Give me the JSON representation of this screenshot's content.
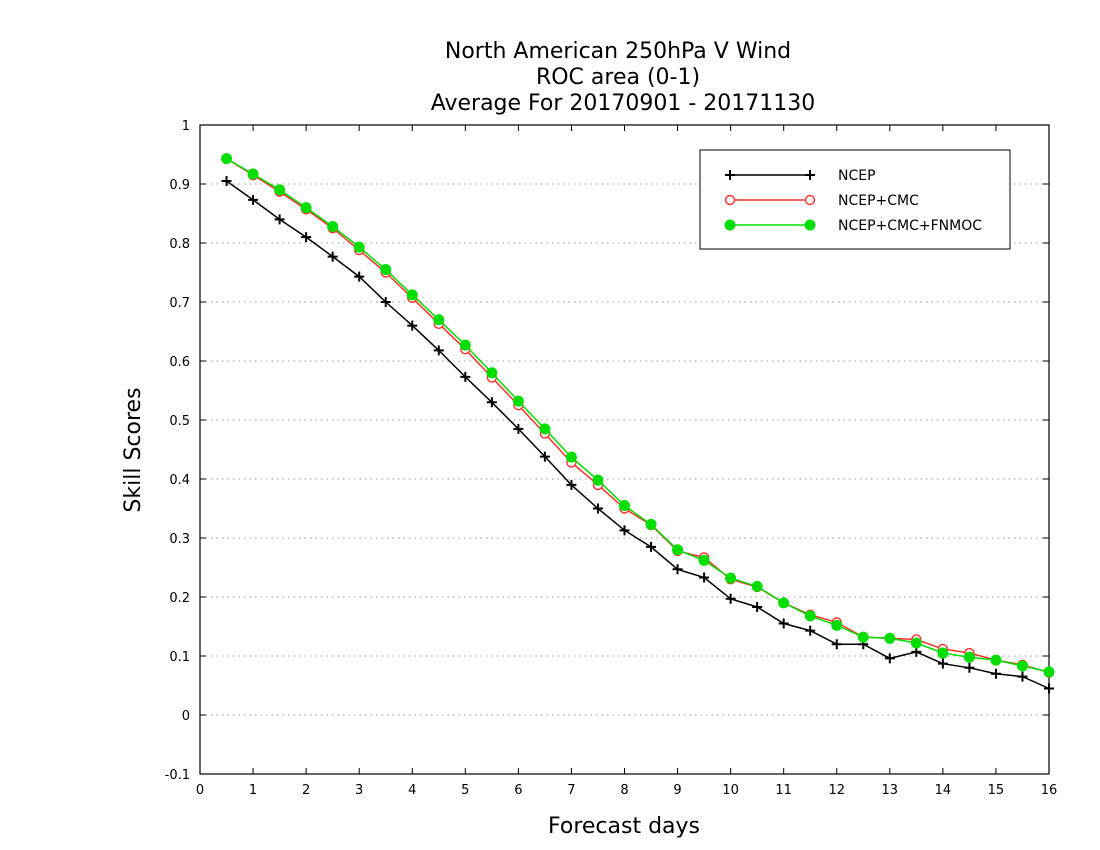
{
  "chart_data": {
    "type": "line",
    "title": [
      "North American 250hPa V Wind",
      "ROC area (0-1)",
      "Average For 20170901 - 20171130"
    ],
    "xlabel": "Forecast days",
    "ylabel": "Skill Scores",
    "xlim": [
      0,
      16
    ],
    "ylim": [
      -0.1,
      1
    ],
    "x_ticks": [
      "0",
      "1",
      "2",
      "3",
      "4",
      "5",
      "6",
      "7",
      "8",
      "9",
      "10",
      "11",
      "12",
      "13",
      "14",
      "15",
      "16"
    ],
    "y_ticks": [
      "-0.1",
      "0",
      "0.1",
      "0.2",
      "0.3",
      "0.4",
      "0.5",
      "0.6",
      "0.7",
      "0.8",
      "0.9",
      "1"
    ],
    "grid": "horizontal-dotted",
    "legend_position": "top-right",
    "x": [
      0.5,
      1,
      1.5,
      2,
      2.5,
      3,
      3.5,
      4,
      4.5,
      5,
      5.5,
      6,
      6.5,
      7,
      7.5,
      8,
      8.5,
      9,
      9.5,
      10,
      10.5,
      11,
      11.5,
      12,
      12.5,
      13,
      13.5,
      14,
      14.5,
      15,
      15.5,
      16
    ],
    "series": [
      {
        "name": "NCEP",
        "color": "#000000",
        "marker": "plus",
        "values": [
          0.905,
          0.873,
          0.84,
          0.81,
          0.777,
          0.743,
          0.7,
          0.66,
          0.618,
          0.573,
          0.53,
          0.485,
          0.438,
          0.39,
          0.35,
          0.313,
          0.285,
          0.247,
          0.233,
          0.197,
          0.183,
          0.155,
          0.143,
          0.12,
          0.12,
          0.096,
          0.107,
          0.087,
          0.08,
          0.07,
          0.065,
          0.045
        ]
      },
      {
        "name": "NCEP+CMC",
        "color": "#ff3030",
        "marker": "open-circle",
        "values": [
          0.943,
          0.915,
          0.887,
          0.857,
          0.825,
          0.788,
          0.75,
          0.707,
          0.663,
          0.62,
          0.572,
          0.525,
          0.477,
          0.428,
          0.39,
          0.35,
          0.322,
          0.278,
          0.267,
          0.23,
          0.217,
          0.19,
          0.17,
          0.157,
          0.132,
          0.13,
          0.128,
          0.112,
          0.105,
          0.093,
          0.085,
          0.072
        ]
      },
      {
        "name": "NCEP+CMC+FNMOC",
        "color": "#00dd00",
        "marker": "filled-circle",
        "values": [
          0.943,
          0.917,
          0.89,
          0.86,
          0.828,
          0.793,
          0.755,
          0.712,
          0.67,
          0.627,
          0.58,
          0.532,
          0.485,
          0.437,
          0.398,
          0.355,
          0.323,
          0.28,
          0.262,
          0.232,
          0.218,
          0.19,
          0.168,
          0.152,
          0.132,
          0.13,
          0.122,
          0.105,
          0.098,
          0.093,
          0.083,
          0.073
        ]
      }
    ]
  }
}
